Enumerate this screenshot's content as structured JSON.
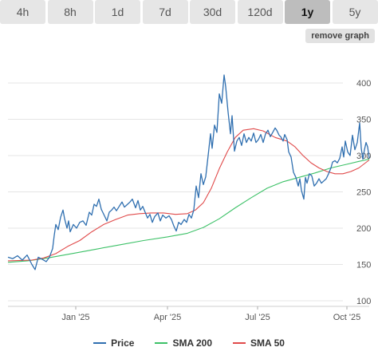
{
  "tabs": [
    {
      "label": "4h",
      "active": false
    },
    {
      "label": "8h",
      "active": false
    },
    {
      "label": "1d",
      "active": false
    },
    {
      "label": "7d",
      "active": false
    },
    {
      "label": "30d",
      "active": false
    },
    {
      "label": "120d",
      "active": false
    },
    {
      "label": "1y",
      "active": true
    },
    {
      "label": "5y",
      "active": false
    }
  ],
  "remove_graph_label": "remove graph",
  "legend": [
    {
      "label": "Price",
      "color": "#2f6fb0"
    },
    {
      "label": "SMA 200",
      "color": "#3cc167"
    },
    {
      "label": "SMA 50",
      "color": "#e04a4a"
    }
  ],
  "chart_data": {
    "type": "line",
    "y_ticks": [
      100,
      150,
      200,
      250,
      300,
      350,
      400
    ],
    "ylim": [
      100,
      400
    ],
    "x_tick_labels": [
      {
        "label": "Jan '25",
        "t": 95
      },
      {
        "label": "Apr '25",
        "t": 210
      },
      {
        "label": "Jul '25",
        "t": 323
      },
      {
        "label": "Oct '25",
        "t": 435
      }
    ],
    "series": [
      {
        "name": "Price",
        "color": "#2f6fb0",
        "points": [
          [
            10,
            160
          ],
          [
            16,
            158
          ],
          [
            22,
            162
          ],
          [
            28,
            156
          ],
          [
            34,
            163
          ],
          [
            40,
            150
          ],
          [
            44,
            143
          ],
          [
            48,
            160
          ],
          [
            53,
            157
          ],
          [
            58,
            154
          ],
          [
            62,
            160
          ],
          [
            66,
            172
          ],
          [
            68,
            190
          ],
          [
            70,
            205
          ],
          [
            73,
            198
          ],
          [
            76,
            215
          ],
          [
            79,
            225
          ],
          [
            81,
            213
          ],
          [
            84,
            200
          ],
          [
            86,
            210
          ],
          [
            88,
            195
          ],
          [
            92,
            205
          ],
          [
            96,
            200
          ],
          [
            100,
            208
          ],
          [
            104,
            210
          ],
          [
            108,
            204
          ],
          [
            112,
            222
          ],
          [
            115,
            218
          ],
          [
            118,
            233
          ],
          [
            121,
            230
          ],
          [
            124,
            240
          ],
          [
            127,
            226
          ],
          [
            131,
            217
          ],
          [
            134,
            210
          ],
          [
            137,
            222
          ],
          [
            140,
            225
          ],
          [
            143,
            229
          ],
          [
            146,
            224
          ],
          [
            150,
            231
          ],
          [
            153,
            236
          ],
          [
            156,
            229
          ],
          [
            160,
            233
          ],
          [
            163,
            236
          ],
          [
            166,
            240
          ],
          [
            170,
            228
          ],
          [
            173,
            238
          ],
          [
            176,
            225
          ],
          [
            179,
            230
          ],
          [
            182,
            222
          ],
          [
            185,
            214
          ],
          [
            188,
            219
          ],
          [
            191,
            208
          ],
          [
            194,
            216
          ],
          [
            198,
            221
          ],
          [
            201,
            210
          ],
          [
            204,
            218
          ],
          [
            208,
            214
          ],
          [
            212,
            217
          ],
          [
            215,
            212
          ],
          [
            218,
            203
          ],
          [
            221,
            196
          ],
          [
            224,
            208
          ],
          [
            227,
            205
          ],
          [
            231,
            212
          ],
          [
            234,
            208
          ],
          [
            237,
            219
          ],
          [
            240,
            214
          ],
          [
            243,
            225
          ],
          [
            246,
            258
          ],
          [
            249,
            242
          ],
          [
            252,
            275
          ],
          [
            255,
            260
          ],
          [
            258,
            271
          ],
          [
            261,
            300
          ],
          [
            264,
            330
          ],
          [
            266,
            310
          ],
          [
            269,
            342
          ],
          [
            272,
            332
          ],
          [
            275,
            385
          ],
          [
            278,
            372
          ],
          [
            281,
            411
          ],
          [
            283,
            395
          ],
          [
            286,
            360
          ],
          [
            289,
            330
          ],
          [
            291,
            355
          ],
          [
            294,
            306
          ],
          [
            297,
            320
          ],
          [
            300,
            325
          ],
          [
            303,
            314
          ],
          [
            306,
            330
          ],
          [
            309,
            318
          ],
          [
            312,
            325
          ],
          [
            315,
            320
          ],
          [
            318,
            331
          ],
          [
            321,
            318
          ],
          [
            324,
            322
          ],
          [
            327,
            329
          ],
          [
            330,
            318
          ],
          [
            333,
            330
          ],
          [
            336,
            335
          ],
          [
            339,
            326
          ],
          [
            342,
            332
          ],
          [
            345,
            338
          ],
          [
            347,
            335
          ],
          [
            350,
            328
          ],
          [
            352,
            326
          ],
          [
            355,
            320
          ],
          [
            357,
            329
          ],
          [
            360,
            322
          ],
          [
            362,
            305
          ],
          [
            365,
            298
          ],
          [
            368,
            277
          ],
          [
            371,
            270
          ],
          [
            374,
            258
          ],
          [
            376,
            268
          ],
          [
            378,
            252
          ],
          [
            381,
            240
          ],
          [
            383,
            270
          ],
          [
            385,
            262
          ],
          [
            388,
            275
          ],
          [
            391,
            272
          ],
          [
            394,
            258
          ],
          [
            397,
            262
          ],
          [
            400,
            268
          ],
          [
            403,
            262
          ],
          [
            406,
            265
          ],
          [
            409,
            268
          ],
          [
            412,
            275
          ],
          [
            415,
            283
          ],
          [
            417,
            291
          ],
          [
            420,
            293
          ],
          [
            423,
            290
          ],
          [
            426,
            296
          ],
          [
            429,
            312
          ],
          [
            431,
            298
          ],
          [
            433,
            320
          ],
          [
            436,
            305
          ],
          [
            439,
            300
          ],
          [
            442,
            328
          ],
          [
            445,
            308
          ],
          [
            448,
            318
          ],
          [
            451,
            345
          ],
          [
            453,
            310
          ],
          [
            455,
            295
          ],
          [
            457,
            308
          ],
          [
            459,
            318
          ],
          [
            461,
            312
          ],
          [
            463,
            296
          ]
        ]
      },
      {
        "name": "SMA 200",
        "color": "#3cc167",
        "points": [
          [
            10,
            153
          ],
          [
            35,
            155
          ],
          [
            60,
            159
          ],
          [
            90,
            165
          ],
          [
            120,
            171
          ],
          [
            150,
            177
          ],
          [
            180,
            183
          ],
          [
            210,
            188
          ],
          [
            235,
            193
          ],
          [
            255,
            201
          ],
          [
            275,
            213
          ],
          [
            295,
            228
          ],
          [
            315,
            242
          ],
          [
            335,
            255
          ],
          [
            355,
            264
          ],
          [
            375,
            270
          ],
          [
            395,
            276
          ],
          [
            415,
            283
          ],
          [
            435,
            288
          ],
          [
            450,
            292
          ],
          [
            463,
            295
          ]
        ]
      },
      {
        "name": "SMA 50",
        "color": "#e04a4a",
        "points": [
          [
            10,
            155
          ],
          [
            40,
            156
          ],
          [
            55,
            159
          ],
          [
            70,
            165
          ],
          [
            85,
            175
          ],
          [
            100,
            183
          ],
          [
            115,
            195
          ],
          [
            130,
            205
          ],
          [
            145,
            212
          ],
          [
            160,
            218
          ],
          [
            175,
            220
          ],
          [
            190,
            221
          ],
          [
            205,
            221
          ],
          [
            220,
            219
          ],
          [
            235,
            220
          ],
          [
            245,
            225
          ],
          [
            255,
            235
          ],
          [
            265,
            255
          ],
          [
            275,
            282
          ],
          [
            285,
            305
          ],
          [
            295,
            325
          ],
          [
            305,
            335
          ],
          [
            318,
            337
          ],
          [
            330,
            334
          ],
          [
            345,
            325
          ],
          [
            360,
            320
          ],
          [
            370,
            312
          ],
          [
            380,
            300
          ],
          [
            390,
            290
          ],
          [
            400,
            283
          ],
          [
            410,
            278
          ],
          [
            420,
            275
          ],
          [
            430,
            275
          ],
          [
            440,
            278
          ],
          [
            450,
            283
          ],
          [
            463,
            294
          ]
        ]
      }
    ]
  }
}
